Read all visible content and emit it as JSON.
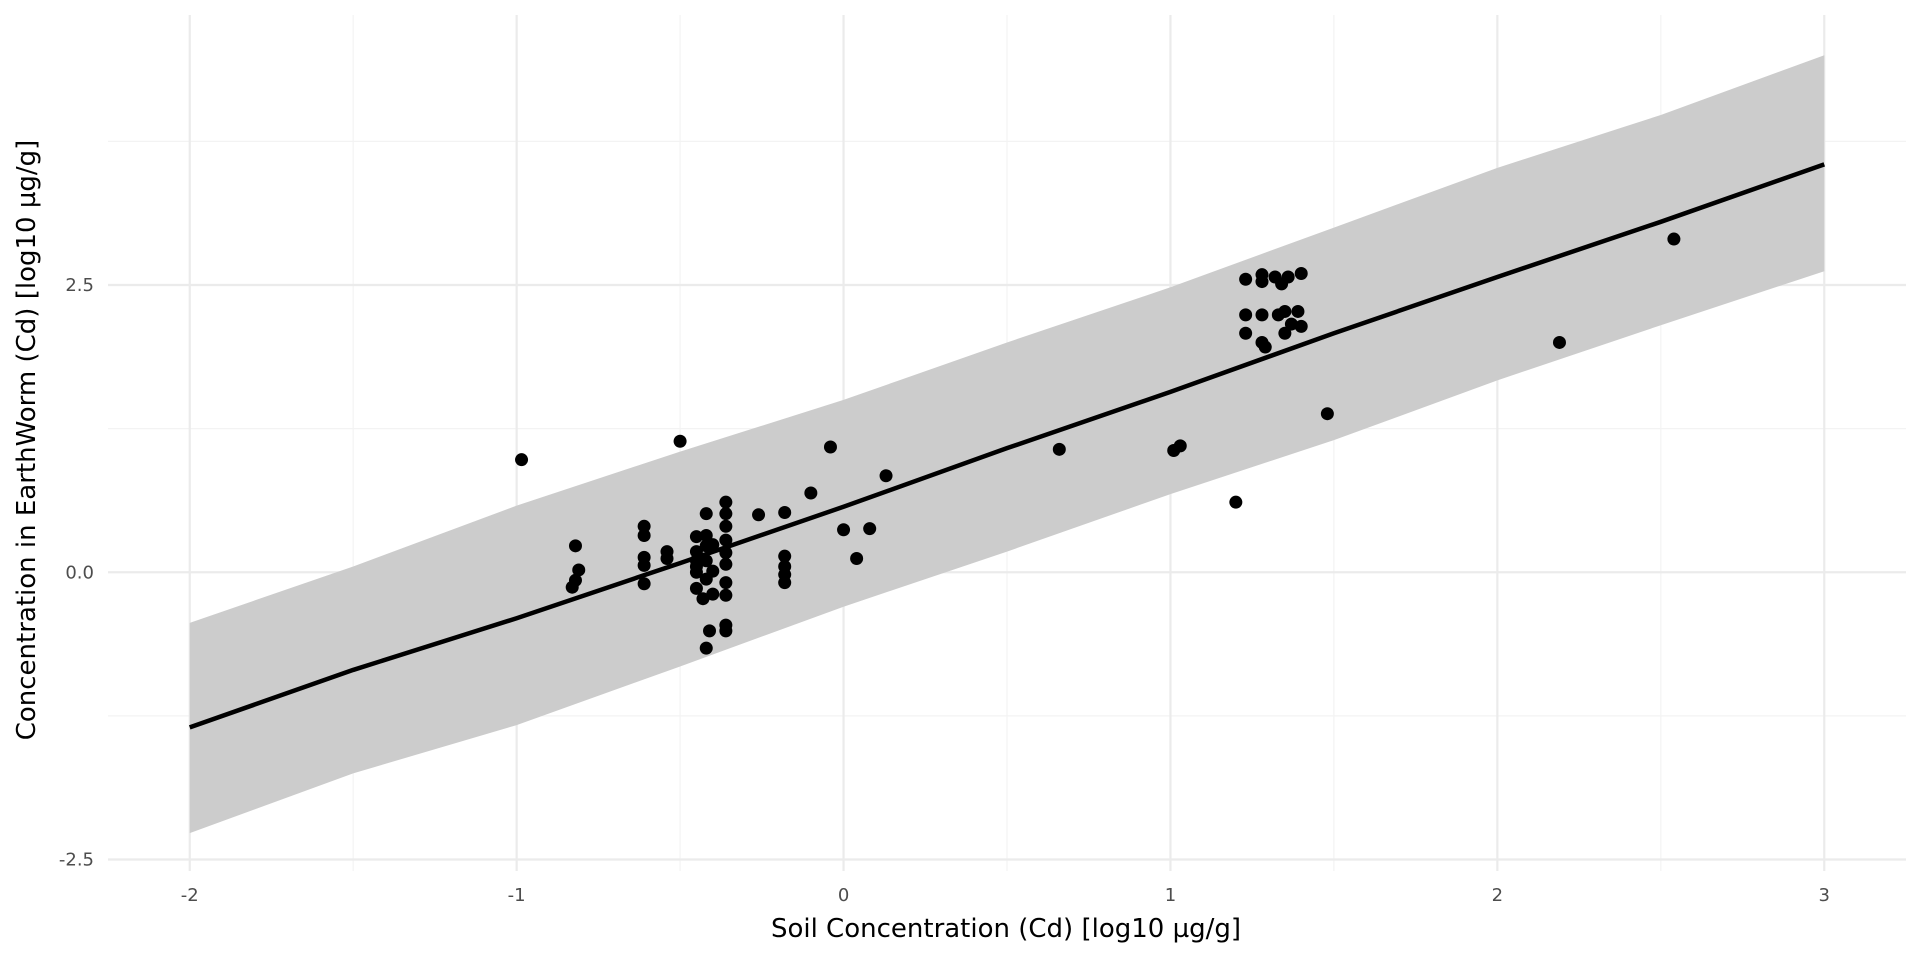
{
  "chart_data": {
    "type": "scatter",
    "title": "",
    "xlabel": "Soil Concentration (Cd) [log10 µg/g]",
    "ylabel": "Concentration in EarthWorm (Cd) [log10 µg/g]",
    "xlim": [
      -2.25,
      3.25
    ],
    "ylim": [
      -2.6,
      4.85
    ],
    "xticks": [
      -2,
      -1,
      0,
      1,
      2,
      3
    ],
    "xtick_labels": [
      "-2",
      "-1",
      "0",
      "1",
      "2",
      "3"
    ],
    "yticks": [
      -2.5,
      0,
      2.5
    ],
    "ytick_labels": [
      "-2.5",
      "0.0",
      "2.5"
    ],
    "grid": true,
    "colors": {
      "band": "#cccccc",
      "line": "#000000",
      "points": "#000000",
      "grid": "#ebebeb"
    },
    "fit_line": {
      "x": [
        -2,
        -1.5,
        -1,
        -0.5,
        0,
        0.5,
        1,
        1.5,
        2,
        2.5,
        3
      ],
      "y": [
        -1.35,
        -0.85,
        -0.4,
        0.08,
        0.57,
        1.08,
        1.57,
        2.08,
        2.57,
        3.05,
        3.55
      ]
    },
    "prediction_band": {
      "x": [
        -2,
        -1.5,
        -1,
        -0.5,
        0,
        0.5,
        1,
        1.5,
        2,
        2.5,
        3
      ],
      "lower": [
        -2.27,
        -1.75,
        -1.33,
        -0.82,
        -0.3,
        0.18,
        0.68,
        1.15,
        1.67,
        2.15,
        2.62
      ],
      "upper": [
        -0.44,
        0.05,
        0.58,
        1.05,
        1.5,
        2.0,
        2.48,
        3.0,
        3.52,
        3.98,
        4.5
      ]
    },
    "points": [
      [
        -0.985,
        0.98
      ],
      [
        -0.82,
        0.23
      ],
      [
        -0.81,
        0.02
      ],
      [
        -0.82,
        -0.07
      ],
      [
        -0.83,
        -0.13
      ],
      [
        -0.61,
        0.4
      ],
      [
        -0.61,
        0.32
      ],
      [
        -0.61,
        0.13
      ],
      [
        -0.61,
        0.06
      ],
      [
        -0.61,
        -0.1
      ],
      [
        -0.54,
        0.18
      ],
      [
        -0.54,
        0.12
      ],
      [
        -0.5,
        1.14
      ],
      [
        -0.45,
        0.31
      ],
      [
        -0.45,
        0.18
      ],
      [
        -0.45,
        0.1
      ],
      [
        -0.45,
        0.05
      ],
      [
        -0.45,
        0.0
      ],
      [
        -0.45,
        -0.14
      ],
      [
        -0.43,
        -0.23
      ],
      [
        -0.42,
        0.51
      ],
      [
        -0.42,
        0.32
      ],
      [
        -0.42,
        0.23
      ],
      [
        -0.42,
        0.1
      ],
      [
        -0.42,
        -0.06
      ],
      [
        -0.42,
        -0.66
      ],
      [
        -0.41,
        -0.51
      ],
      [
        -0.4,
        0.24
      ],
      [
        -0.4,
        0.01
      ],
      [
        -0.4,
        -0.19
      ],
      [
        -0.36,
        0.61
      ],
      [
        -0.36,
        0.51
      ],
      [
        -0.36,
        0.4
      ],
      [
        -0.36,
        0.28
      ],
      [
        -0.36,
        0.17
      ],
      [
        -0.36,
        0.07
      ],
      [
        -0.36,
        -0.09
      ],
      [
        -0.36,
        -0.2
      ],
      [
        -0.36,
        -0.46
      ],
      [
        -0.36,
        -0.51
      ],
      [
        -0.26,
        0.5
      ],
      [
        -0.18,
        0.52
      ],
      [
        -0.18,
        0.14
      ],
      [
        -0.18,
        0.05
      ],
      [
        -0.18,
        -0.02
      ],
      [
        -0.18,
        -0.09
      ],
      [
        -0.1,
        0.69
      ],
      [
        -0.04,
        1.09
      ],
      [
        0.0,
        0.37
      ],
      [
        0.04,
        0.12
      ],
      [
        0.08,
        0.38
      ],
      [
        0.13,
        0.84
      ],
      [
        0.66,
        1.07
      ],
      [
        1.01,
        1.06
      ],
      [
        1.03,
        1.1
      ],
      [
        1.2,
        0.61
      ],
      [
        1.23,
        2.55
      ],
      [
        1.23,
        2.24
      ],
      [
        1.23,
        2.08
      ],
      [
        1.28,
        2.59
      ],
      [
        1.28,
        2.53
      ],
      [
        1.28,
        2.24
      ],
      [
        1.28,
        2.0
      ],
      [
        1.29,
        1.96
      ],
      [
        1.32,
        2.57
      ],
      [
        1.34,
        2.51
      ],
      [
        1.36,
        2.57
      ],
      [
        1.4,
        2.6
      ],
      [
        1.33,
        2.24
      ],
      [
        1.35,
        2.27
      ],
      [
        1.37,
        2.16
      ],
      [
        1.4,
        2.14
      ],
      [
        1.39,
        2.27
      ],
      [
        1.35,
        2.08
      ],
      [
        1.48,
        1.38
      ],
      [
        2.19,
        2.0
      ],
      [
        2.54,
        2.9
      ]
    ]
  }
}
